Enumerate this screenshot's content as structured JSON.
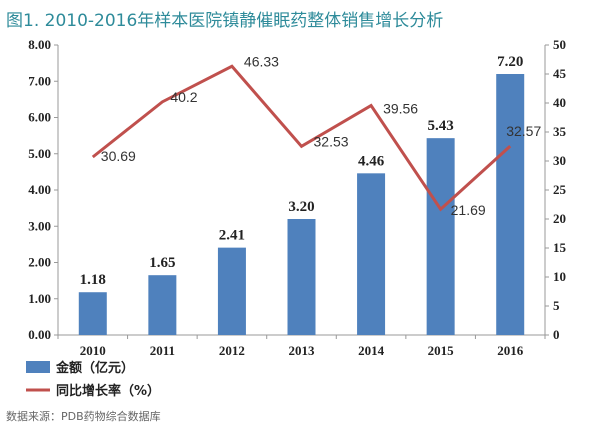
{
  "title": "图1. 2010-2016年样本医院镇静催眠药整体销售增长分析",
  "source": "数据来源：PDB药物综合数据库",
  "colors": {
    "bar": "#4f81bd",
    "line": "#c0504d",
    "title": "#2e8b9a"
  },
  "chart_data": {
    "type": "bar",
    "categories": [
      "2010",
      "2011",
      "2012",
      "2013",
      "2014",
      "2015",
      "2016"
    ],
    "series": [
      {
        "name": "金额（亿元）",
        "type": "bar",
        "axis": "left",
        "values": [
          1.18,
          1.65,
          2.41,
          3.2,
          4.46,
          5.43,
          7.2
        ],
        "labels": [
          "1.18",
          "1.65",
          "2.41",
          "3.20",
          "4.46",
          "5.43",
          "7.20"
        ]
      },
      {
        "name": "同比增长率（%）",
        "type": "line",
        "axis": "right",
        "values": [
          30.69,
          40.2,
          46.33,
          32.53,
          39.56,
          21.69,
          32.57
        ],
        "labels": [
          "30.69",
          "40.2",
          "46.33",
          "32.53",
          "39.56",
          "21.69",
          "32.57"
        ]
      }
    ],
    "y_left": {
      "range": [
        0,
        8
      ],
      "ticks": [
        "0.00",
        "1.00",
        "2.00",
        "3.00",
        "4.00",
        "5.00",
        "6.00",
        "7.00",
        "8.00"
      ]
    },
    "y_right": {
      "range": [
        0,
        50
      ],
      "ticks": [
        "0",
        "5",
        "10",
        "15",
        "20",
        "25",
        "30",
        "35",
        "40",
        "45",
        "50"
      ]
    },
    "grid": false,
    "legend": "bottom-left"
  }
}
